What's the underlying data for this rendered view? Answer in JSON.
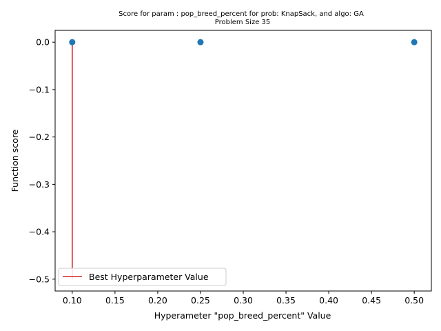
{
  "chart_data": {
    "type": "scatter",
    "title": "Score for param : pop_breed_percent for prob: KnapSack, and algo: GA",
    "subtitle": "Problem Size 35",
    "xlabel": "Hyperameter \"pop_breed_percent\" Value",
    "ylabel": "Function score",
    "xlim": [
      0.08,
      0.52
    ],
    "ylim": [
      -0.525,
      0.025
    ],
    "x_ticks": [
      0.1,
      0.15,
      0.2,
      0.25,
      0.3,
      0.35,
      0.4,
      0.45,
      0.5
    ],
    "x_tick_labels": [
      "0.10",
      "0.15",
      "0.20",
      "0.25",
      "0.30",
      "0.35",
      "0.40",
      "0.45",
      "0.50"
    ],
    "y_ticks": [
      0.0,
      -0.1,
      -0.2,
      -0.3,
      -0.4,
      -0.5
    ],
    "y_tick_labels": [
      "0.0",
      "−0.1",
      "−0.2",
      "−0.3",
      "−0.4",
      "−0.5"
    ],
    "grid": false,
    "legend_position": "lower-left",
    "points": [
      {
        "x": 0.1,
        "y": 0.0
      },
      {
        "x": 0.25,
        "y": 0.0
      },
      {
        "x": 0.5,
        "y": 0.0
      }
    ],
    "point_color": "#1f77b4",
    "best_line": {
      "name": "Best Hyperparameter Value",
      "x": 0.1,
      "y_from": -0.5,
      "y_to": 0.0,
      "color": "#d62728"
    }
  }
}
